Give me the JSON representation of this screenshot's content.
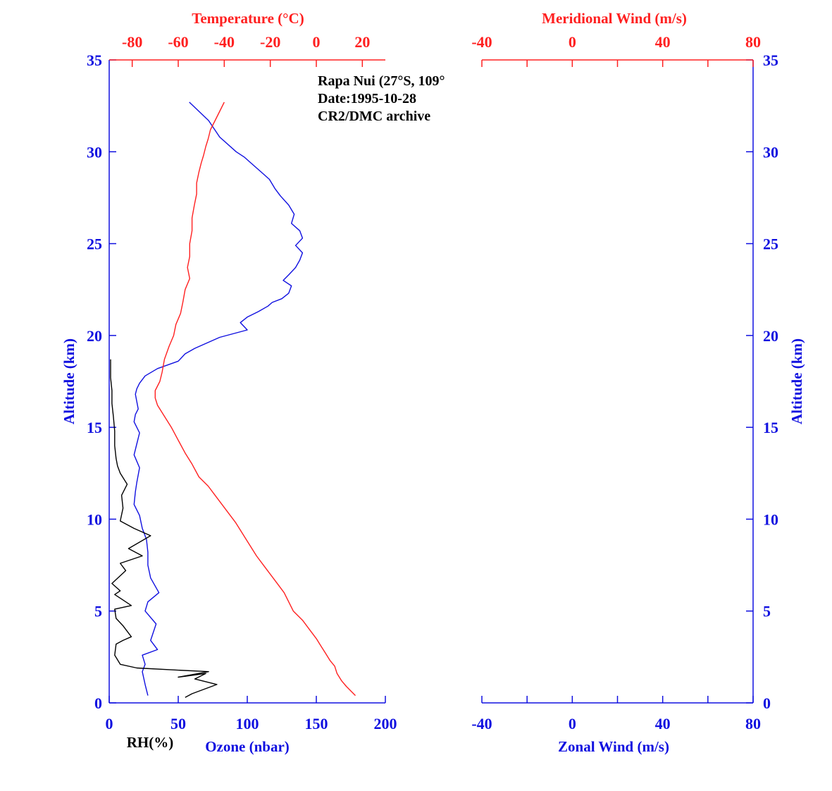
{
  "colors": {
    "blue": "#1010e0",
    "red": "#ff2020",
    "black": "#000000"
  },
  "info_lines": [
    "Rapa Nui (27°S, 109°",
    "Date:1995-10-28",
    "CR2/DMC archive"
  ],
  "labels": {
    "temperature": "Temperature (°C)",
    "meridional": "Meridional Wind (m/s)",
    "zonal": "Zonal Wind (m/s)",
    "altitude": "Altitude (km)",
    "rh": "RH(%)",
    "ozone": "Ozone (nbar)"
  },
  "chart_data": [
    {
      "type": "line",
      "title": "",
      "y_axis": {
        "label": "Altitude (km)",
        "range": [
          0,
          35
        ],
        "ticks": [
          0,
          5,
          10,
          15,
          20,
          25,
          30,
          35
        ]
      },
      "x_axes": [
        {
          "label": "Ozone (nbar)",
          "position": "bottom",
          "range": [
            0,
            200
          ],
          "ticks": [
            0,
            50,
            100,
            150,
            200
          ]
        },
        {
          "label": "RH(%)",
          "position": "bottom",
          "range": [
            0,
            200
          ],
          "ticks": []
        },
        {
          "label": "Temperature (°C)",
          "position": "top",
          "range": [
            -90,
            30
          ],
          "ticks": [
            -80,
            -60,
            -40,
            -20,
            0,
            20
          ]
        }
      ],
      "series": [
        {
          "name": "Ozone (nbar)",
          "color": "#1010e0",
          "x": [
            28,
            26,
            24,
            26,
            24,
            35,
            30,
            34,
            26,
            28,
            36,
            30,
            28,
            28,
            27,
            24,
            22,
            18,
            19,
            20,
            22,
            18,
            20,
            22,
            18,
            19,
            21,
            20,
            19,
            20,
            22,
            26,
            35,
            50,
            55,
            62,
            80,
            100,
            95,
            100,
            108,
            115,
            118,
            125,
            130,
            132,
            126,
            130,
            135,
            138,
            140,
            135,
            140,
            138,
            132,
            134,
            130,
            124,
            120,
            116,
            110,
            104,
            98,
            92,
            80,
            72,
            58
          ],
          "y": [
            0.4,
            1.0,
            1.7,
            2.1,
            2.6,
            2.9,
            3.4,
            4.3,
            5.0,
            5.5,
            6.0,
            6.8,
            7.5,
            8.2,
            8.9,
            9.5,
            10.2,
            10.8,
            11.5,
            12.0,
            12.8,
            13.5,
            14.1,
            14.7,
            15.3,
            15.7,
            16.0,
            16.4,
            16.8,
            17.1,
            17.4,
            17.8,
            18.2,
            18.6,
            19.0,
            19.3,
            19.9,
            20.3,
            20.7,
            21.0,
            21.3,
            21.6,
            21.8,
            22.0,
            22.3,
            22.7,
            23.0,
            23.3,
            23.7,
            24.1,
            24.5,
            24.9,
            25.3,
            25.7,
            26.1,
            26.6,
            27.1,
            27.6,
            28.0,
            28.5,
            28.9,
            29.3,
            29.7,
            30.0,
            30.8,
            31.7,
            32.7
          ]
        },
        {
          "name": "Temperature (°C)",
          "color": "#ff2020",
          "x": [
            17,
            13,
            11,
            9,
            8,
            6,
            4,
            2,
            0,
            -3,
            -6,
            -10,
            -12,
            -14,
            -17,
            -20,
            -23,
            -26,
            -29,
            -32,
            -35,
            -38,
            -41,
            -44,
            -47,
            -51,
            -54,
            -57,
            -60,
            -63,
            -66,
            -69,
            -70,
            -70,
            -68,
            -67,
            -66,
            -64,
            -62,
            -61,
            -59,
            -58,
            -57,
            -55,
            -56,
            -55,
            -55,
            -54,
            -54,
            -53,
            -52,
            -52,
            -51,
            -50,
            -49,
            -48,
            -47,
            -46,
            -44,
            -42,
            -40
          ],
          "y": [
            0.4,
            0.9,
            1.2,
            1.6,
            2.0,
            2.3,
            2.7,
            3.1,
            3.5,
            4.0,
            4.5,
            5.0,
            5.5,
            6.0,
            6.5,
            7.0,
            7.5,
            8.0,
            8.6,
            9.2,
            9.8,
            10.3,
            10.8,
            11.3,
            11.8,
            12.3,
            13.0,
            13.6,
            14.3,
            15.0,
            15.6,
            16.2,
            16.6,
            17.0,
            17.5,
            18.0,
            18.7,
            19.4,
            20.0,
            20.6,
            21.2,
            21.8,
            22.5,
            23.1,
            23.7,
            24.3,
            25.0,
            25.7,
            26.4,
            27.1,
            27.7,
            28.3,
            28.9,
            29.4,
            29.8,
            30.3,
            30.7,
            31.2,
            31.7,
            32.2,
            32.7
          ]
        },
        {
          "name": "RH(%)",
          "color": "#000000",
          "x": [
            55,
            60,
            78,
            62,
            70,
            50,
            72,
            45,
            20,
            8,
            4,
            5,
            10,
            16,
            10,
            5,
            4,
            16,
            10,
            4,
            8,
            2,
            12,
            8,
            24,
            14,
            30,
            18,
            8,
            10,
            9,
            13,
            8,
            6,
            5,
            4,
            4,
            3,
            2,
            2,
            1,
            1,
            1
          ],
          "y": [
            0.3,
            0.5,
            1.0,
            1.3,
            1.6,
            1.4,
            1.7,
            1.8,
            1.9,
            2.1,
            2.6,
            3.2,
            3.4,
            3.6,
            4.2,
            4.6,
            5.1,
            5.3,
            5.6,
            5.9,
            6.1,
            6.5,
            7.2,
            7.6,
            8.0,
            8.4,
            9.1,
            9.5,
            9.9,
            10.6,
            11.3,
            11.9,
            12.5,
            12.9,
            13.3,
            14.0,
            14.8,
            15.6,
            16.3,
            17.0,
            17.7,
            18.2,
            18.7
          ]
        }
      ]
    },
    {
      "type": "line",
      "title": "",
      "y_axis": {
        "label": "Altitude (km)",
        "range": [
          0,
          35
        ],
        "ticks": [
          0,
          5,
          10,
          15,
          20,
          25,
          30,
          35
        ]
      },
      "x_axes": [
        {
          "label": "Zonal Wind (m/s)",
          "position": "bottom",
          "range": [
            -40,
            80
          ],
          "ticks": [
            -40,
            0,
            40,
            80
          ]
        },
        {
          "label": "Meridional Wind (m/s)",
          "position": "top",
          "range": [
            -40,
            80
          ],
          "ticks": [
            -40,
            0,
            40,
            80
          ]
        }
      ],
      "series": []
    }
  ]
}
